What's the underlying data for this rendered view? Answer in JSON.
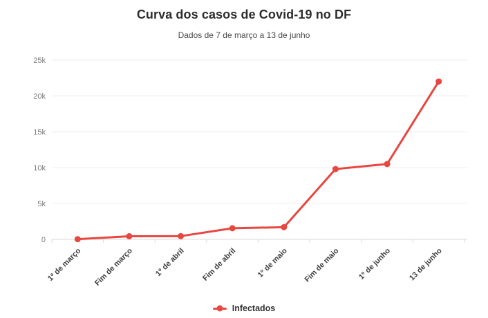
{
  "chart_data": {
    "type": "line",
    "title": "Curva dos casos de Covid-19 no DF",
    "subtitle": "Dados de 7 de março a 13 de junho",
    "categories": [
      "1º de março",
      "Fim de março",
      "1º de abril",
      "Fim de abril",
      "1º de maio",
      "Fim de maio",
      "1º de junho",
      "13 de junho"
    ],
    "series": [
      {
        "name": "Infectados",
        "color": "#e8463e",
        "values": [
          30,
          430,
          450,
          1550,
          1700,
          9800,
          10500,
          22000
        ]
      }
    ],
    "ylim": [
      0,
      25000
    ],
    "yticks": {
      "values": [
        0,
        5000,
        10000,
        15000,
        20000,
        25000
      ],
      "labels": [
        "0",
        "5k",
        "10k",
        "15k",
        "20k",
        "25k"
      ]
    },
    "grid": true,
    "legend_position": "bottom",
    "colors": {
      "accent": "#e8463e",
      "title_text": "#2d2d2d",
      "axis_text": "#7a7a7a",
      "category_text": "#3d3d3d",
      "gridline": "#ececec",
      "axis_line": "#d9d9d9"
    }
  }
}
